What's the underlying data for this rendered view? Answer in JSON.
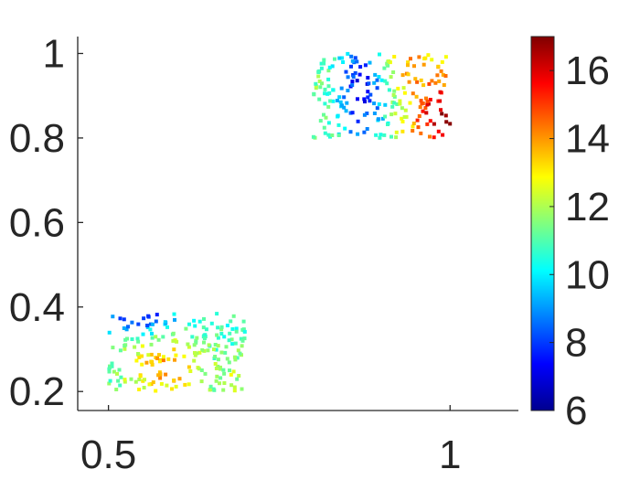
{
  "chart_data": {
    "type": "scatter",
    "title": "",
    "xlabel": "",
    "ylabel": "",
    "xlim": [
      0.455,
      1.1
    ],
    "ylim": [
      0.155,
      1.04
    ],
    "x_ticks": [
      0.5,
      1
    ],
    "x_tick_labels": [
      "0.5",
      "1"
    ],
    "y_ticks": [
      0.2,
      0.4,
      0.6,
      0.8,
      1
    ],
    "y_tick_labels": [
      "0.2",
      "0.4",
      "0.6",
      "0.8",
      "1"
    ],
    "grid": false,
    "colormap": "jet",
    "colorbar": {
      "range": [
        6,
        17
      ],
      "ticks": [
        6,
        8,
        10,
        12,
        14,
        16
      ],
      "tick_labels": [
        "6",
        "8",
        "10",
        "12",
        "14",
        "16"
      ]
    },
    "clusters": [
      {
        "x_range": [
          0.5,
          0.7
        ],
        "y_range": [
          0.2,
          0.385
        ],
        "points": 230,
        "color_value_note": "low (blue ~7) near top-left, high (orange ~14) at centre-bottom"
      },
      {
        "x_range": [
          0.8,
          1.0
        ],
        "y_range": [
          0.8,
          1.0
        ],
        "points": 230,
        "color_value_note": "low (blue ~7) around x≈0.87, high (dark red ~17) near x≈1.0, y≈0.85"
      }
    ]
  }
}
